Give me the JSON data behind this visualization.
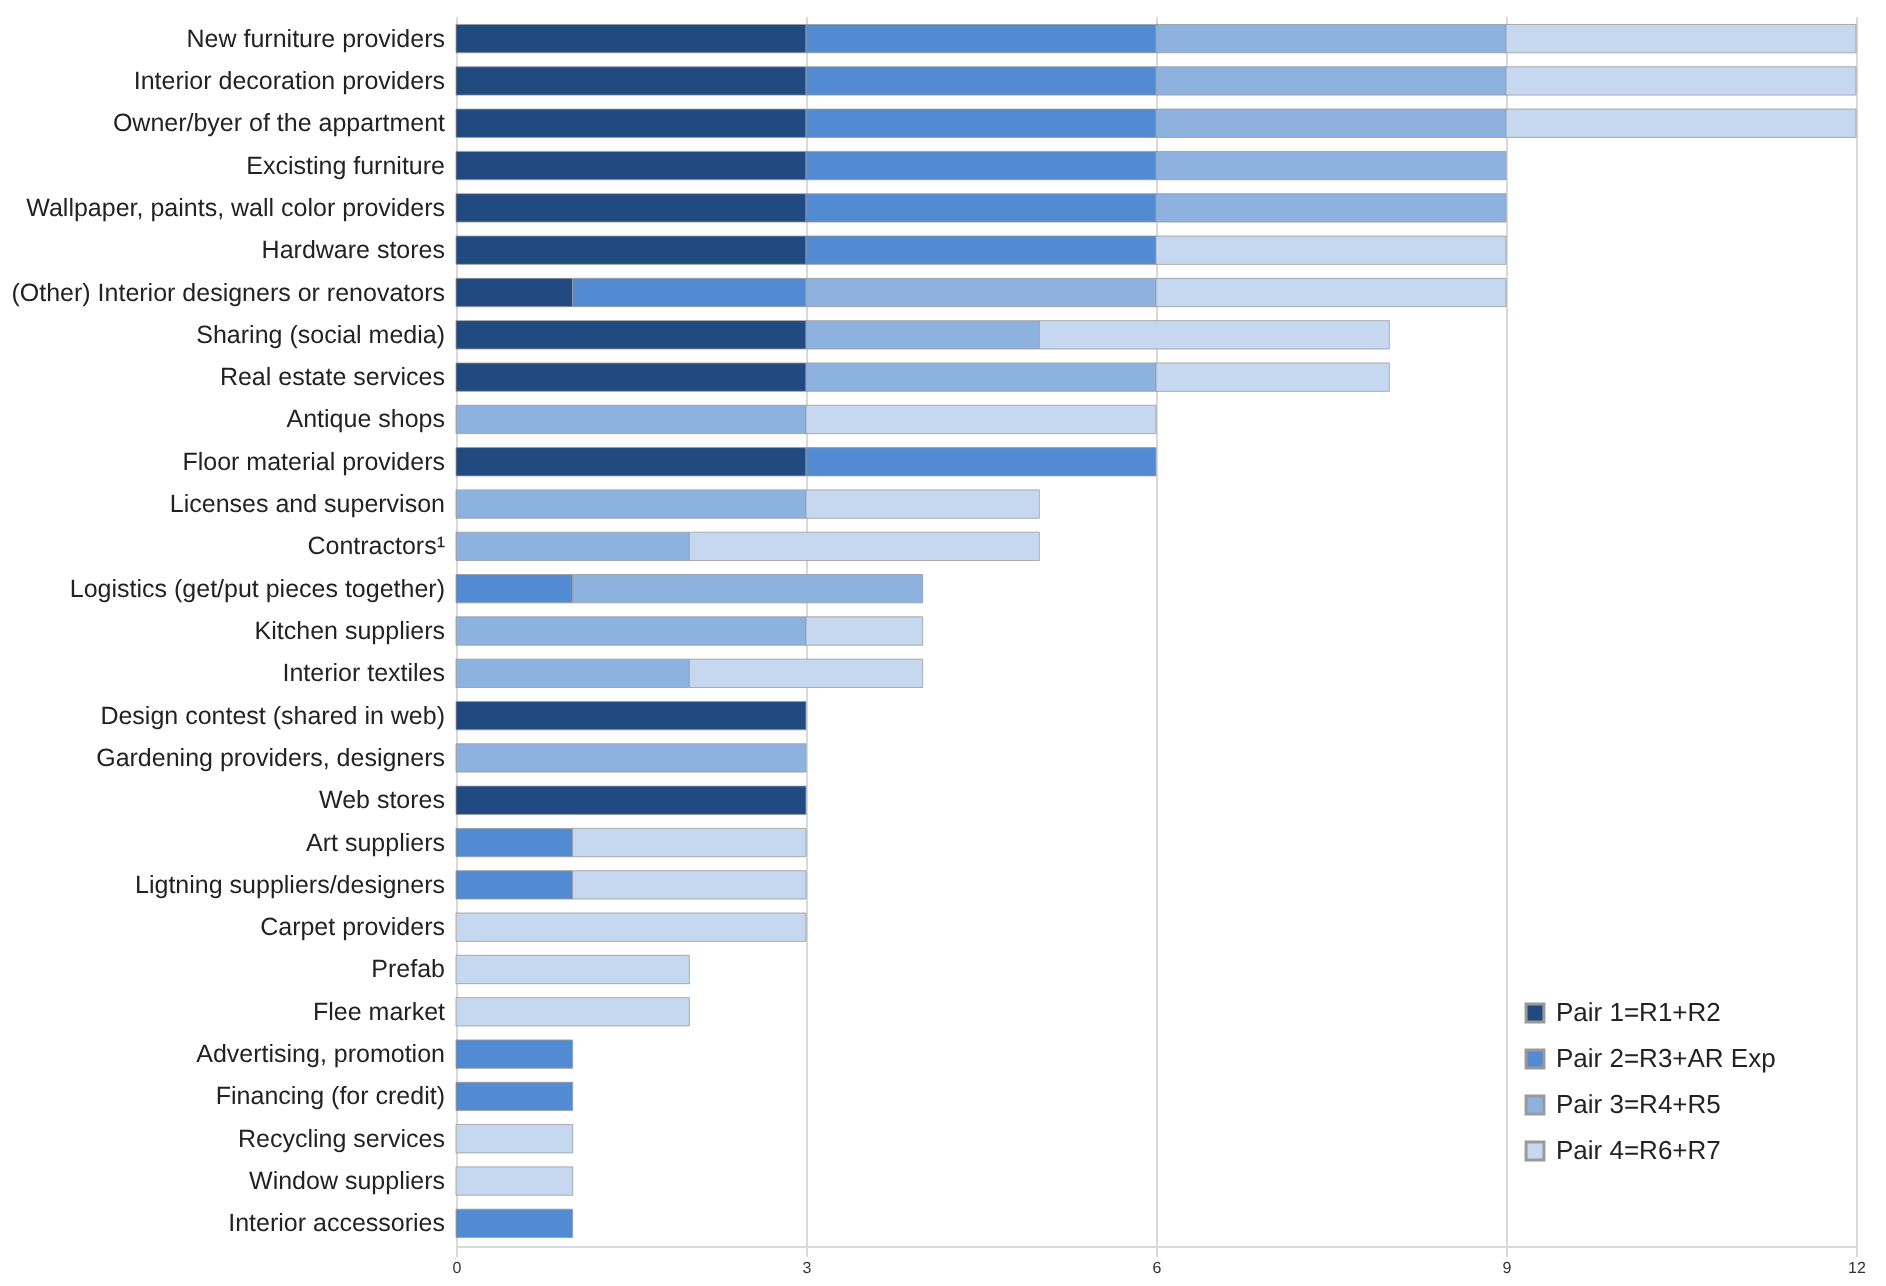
{
  "chart_data": {
    "type": "bar",
    "orientation": "horizontal",
    "stacked": true,
    "categories": [
      "New furniture providers",
      "Interior decoration providers",
      "Owner/byer of the appartment",
      "Excisting furniture",
      "Wallpaper, paints, wall color providers",
      "Hardware stores",
      "(Other) Interior designers or renovators",
      "Sharing (social media)",
      "Real estate services",
      "Antique shops",
      "Floor material providers",
      "Licenses and supervison",
      "Contractors¹",
      "Logistics (get/put pieces together)",
      "Kitchen suppliers",
      "Interior textiles",
      "Design contest (shared in web)",
      "Gardening providers, designers",
      "Web stores",
      "Art suppliers",
      "Ligtning suppliers/designers",
      "Carpet providers",
      "Prefab",
      "Flee market",
      "Advertising, promotion",
      "Financing (for credit)",
      "Recycling services",
      "Window suppliers",
      "Interior accessories"
    ],
    "series": [
      {
        "name": "Pair 1=R1+R2",
        "color": "#214a80",
        "values": [
          3,
          3,
          3,
          3,
          3,
          3,
          1,
          3,
          3,
          null,
          3,
          null,
          null,
          null,
          null,
          null,
          3,
          null,
          3,
          null,
          null,
          null,
          null,
          null,
          null,
          null,
          null,
          null,
          null
        ]
      },
      {
        "name": "Pair 2=R3+AR Exp",
        "color": "#538bd2",
        "values": [
          3,
          3,
          3,
          3,
          3,
          3,
          2,
          null,
          null,
          null,
          3,
          null,
          null,
          1,
          null,
          null,
          null,
          null,
          null,
          1,
          1,
          null,
          null,
          null,
          1,
          1,
          null,
          null,
          1
        ]
      },
      {
        "name": "Pair 3=R4+R5",
        "color": "#8eb2e0",
        "values": [
          3,
          3,
          3,
          3,
          3,
          null,
          3,
          2,
          3,
          3,
          null,
          3,
          2,
          3,
          3,
          2,
          null,
          3,
          null,
          null,
          null,
          null,
          null,
          null,
          null,
          null,
          null,
          null,
          null
        ]
      },
      {
        "name": "Pair 4=R6+R7",
        "color": "#c6d8f0",
        "values": [
          3,
          3,
          3,
          null,
          null,
          3,
          3,
          3,
          2,
          3,
          null,
          2,
          3,
          null,
          1,
          2,
          null,
          null,
          null,
          2,
          2,
          3,
          2,
          2,
          null,
          null,
          1,
          1,
          null
        ]
      }
    ],
    "xlim": [
      0,
      12
    ],
    "xticks": [
      0,
      3,
      6,
      9,
      12
    ],
    "grid": "x",
    "legend": "bottom right"
  }
}
